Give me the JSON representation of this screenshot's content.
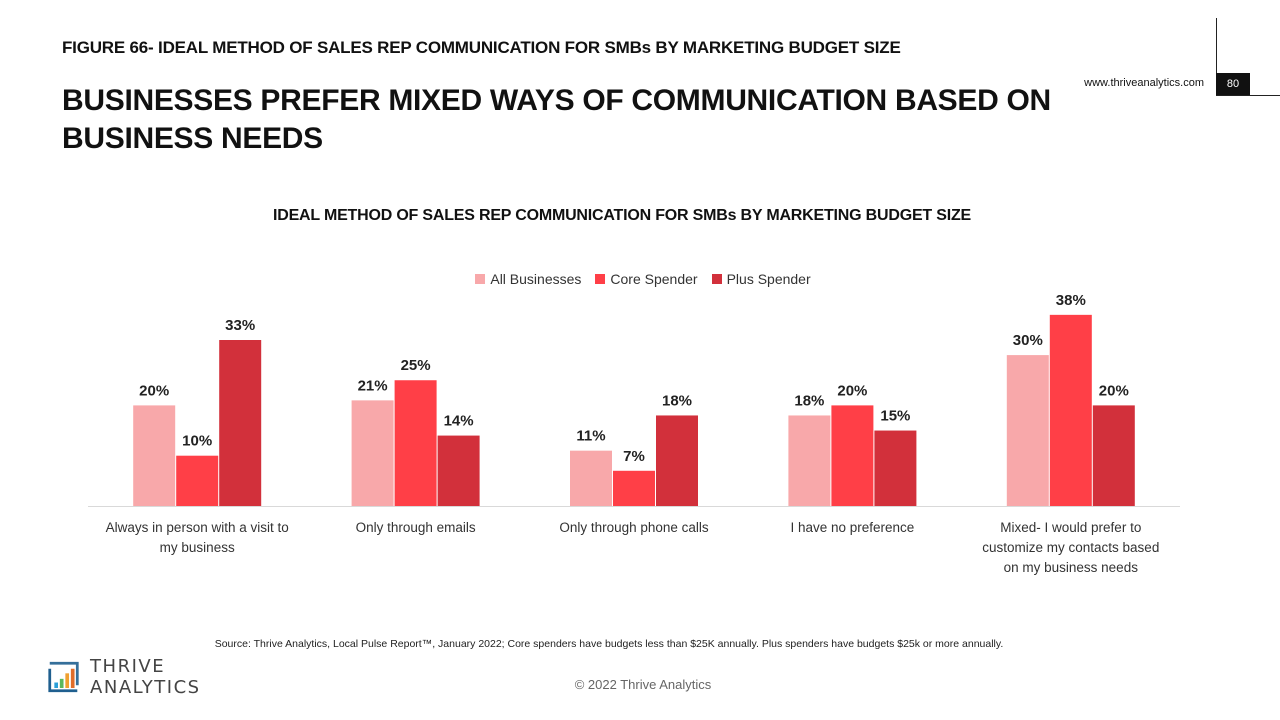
{
  "header": {
    "figure_label": "FIGURE 66- IDEAL METHOD OF SALES REP COMMUNICATION FOR SMBs BY MARKETING BUDGET SIZE",
    "headline": "BUSINESSES PREFER MIXED WAYS OF COMMUNICATION BASED ON BUSINESS NEEDS",
    "site_url": "www.thriveanalytics.com",
    "page_number": "80"
  },
  "colors": {
    "all_businesses": "#f8a8aa",
    "core_spender": "#ff3f47",
    "plus_spender": "#d2303b"
  },
  "chart_data": {
    "type": "bar",
    "title": "IDEAL METHOD OF SALES REP COMMUNICATION FOR SMBs BY MARKETING BUDGET SIZE",
    "xlabel": "",
    "ylabel": "",
    "ylim": [
      0,
      40
    ],
    "grid": false,
    "legend_position": "top-center",
    "categories": [
      [
        "Always in person with a visit to",
        "my business"
      ],
      [
        "Only through emails"
      ],
      [
        "Only through phone calls"
      ],
      [
        "I have no preference"
      ],
      [
        "Mixed- I would prefer to",
        "customize my contacts based",
        "on my business needs"
      ]
    ],
    "series": [
      {
        "name": "All Businesses",
        "values": [
          20,
          21,
          11,
          18,
          30
        ],
        "labels": [
          "20%",
          "21%",
          "11%",
          "18%",
          "30%"
        ]
      },
      {
        "name": "Core Spender",
        "values": [
          10,
          25,
          7,
          20,
          38
        ],
        "labels": [
          "10%",
          "25%",
          "7%",
          "20%",
          "38%"
        ]
      },
      {
        "name": "Plus Spender",
        "values": [
          33,
          14,
          18,
          15,
          20
        ],
        "labels": [
          "33%",
          "14%",
          "18%",
          "15%",
          "20%"
        ]
      }
    ]
  },
  "legend": {
    "items": [
      "All Businesses",
      "Core Spender",
      "Plus Spender"
    ]
  },
  "footer": {
    "source": "Source: Thrive Analytics, Local Pulse Report™, January 2022; Core spenders have budgets less than $25K annually. Plus spenders have budgets $25k or more annually.",
    "logo_text": "THRIVE ANALYTICS",
    "copyright": "© 2022  Thrive Analytics"
  }
}
